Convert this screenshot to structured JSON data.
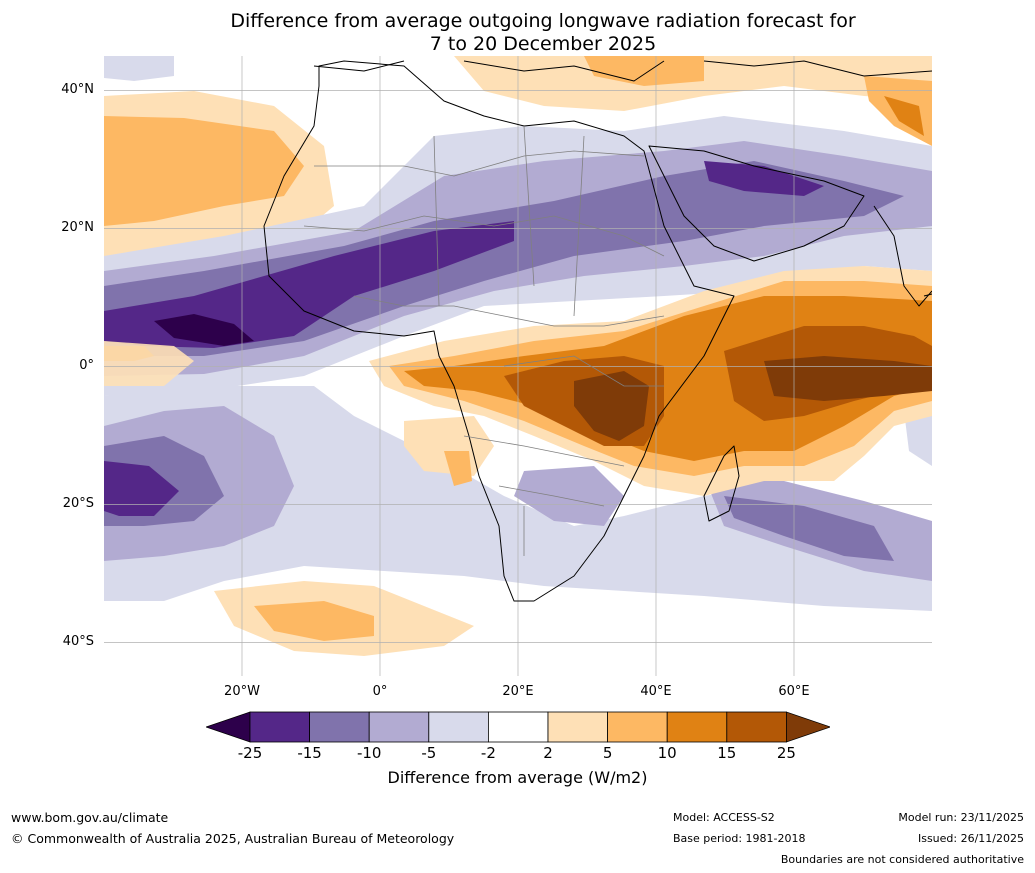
{
  "title": {
    "line1": "Difference from average outgoing longwave radiation forecast for",
    "line2": "7 to 20 December 2025"
  },
  "axes": {
    "lat_labels": [
      "40°N",
      "20°N",
      "0°",
      "20°S",
      "40°S"
    ],
    "lon_labels": [
      "20°W",
      "0°",
      "20°E",
      "40°E",
      "60°E"
    ]
  },
  "legend": {
    "ticks": [
      "-25",
      "-15",
      "-10",
      "-5",
      "-2",
      "2",
      "5",
      "10",
      "15",
      "25"
    ],
    "title": "Difference from average (W/m2)",
    "colors": [
      "#2d004b",
      "#542788",
      "#8073ac",
      "#b2abd2",
      "#d8daeb",
      "#ffffff",
      "#fee0b6",
      "#fdb863",
      "#e08214",
      "#b35806",
      "#7f3b08"
    ]
  },
  "footer": {
    "url": "www.bom.gov.au/climate",
    "copyright": "© Commonwealth of Australia 2025, Australian Bureau of Meteorology",
    "model": "Model: ACCESS-S2",
    "base_period": "Base period: 1981-2018",
    "model_run": "Model run: 23/11/2025",
    "issued": "Issued: 26/11/2025",
    "disclaimer": "Boundaries are not considered authoritative"
  }
}
